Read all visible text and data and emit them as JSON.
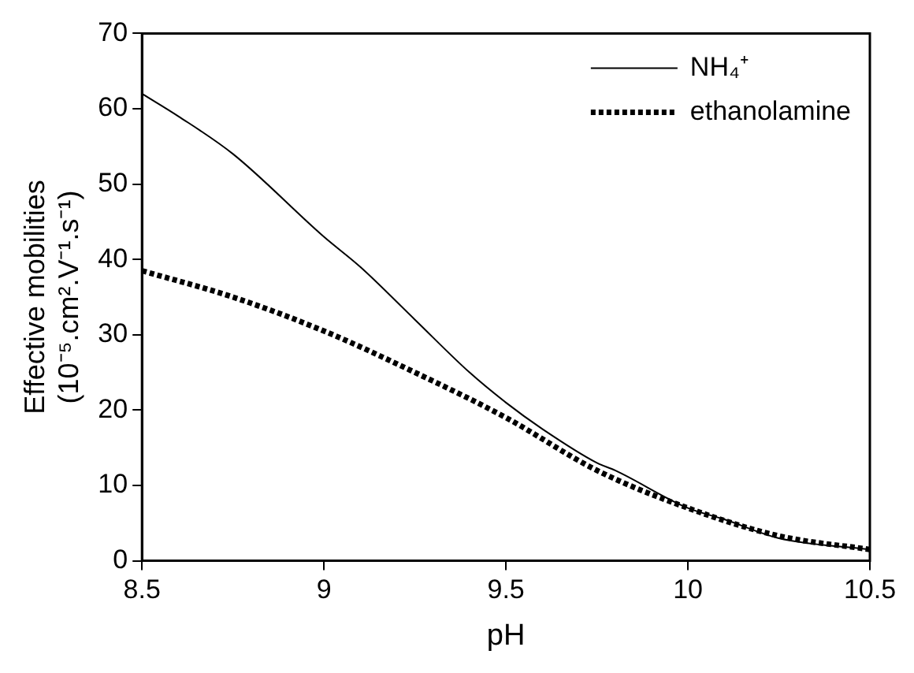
{
  "chart_data": {
    "type": "line",
    "xlabel": "pH",
    "ylabel": "Effective mobilities\n(10⁻⁵.cm².V⁻¹.s⁻¹)",
    "xlim": [
      8.5,
      10.5
    ],
    "xticks": [
      8.5,
      9,
      9.5,
      10,
      10.5
    ],
    "ylim": [
      0,
      70
    ],
    "yticks": [
      0,
      10,
      20,
      30,
      40,
      50,
      60,
      70
    ],
    "grid": false,
    "legend": "top right",
    "marker": "none",
    "series": [
      {
        "name": "NH₄⁺",
        "color": "#000000",
        "line_style": "solid",
        "x": [
          8.5,
          8.6,
          8.75,
          9,
          9.1,
          9.25,
          9.4,
          9.5,
          9.6,
          9.75,
          9.8,
          10,
          10.1,
          10.25,
          10.5
        ],
        "values": [
          62,
          59,
          54,
          43,
          39,
          32,
          25,
          21,
          17.5,
          13,
          12,
          7,
          5.5,
          3,
          1.5
        ]
      },
      {
        "name": "ethanolamine",
        "color": "#000000",
        "line_style": "dotted",
        "x": [
          8.5,
          8.75,
          9,
          9.25,
          9.5,
          9.75,
          10,
          10.25,
          10.5
        ],
        "values": [
          38.5,
          35,
          30.5,
          25,
          19,
          12,
          7,
          3.3,
          1.5
        ]
      }
    ]
  }
}
